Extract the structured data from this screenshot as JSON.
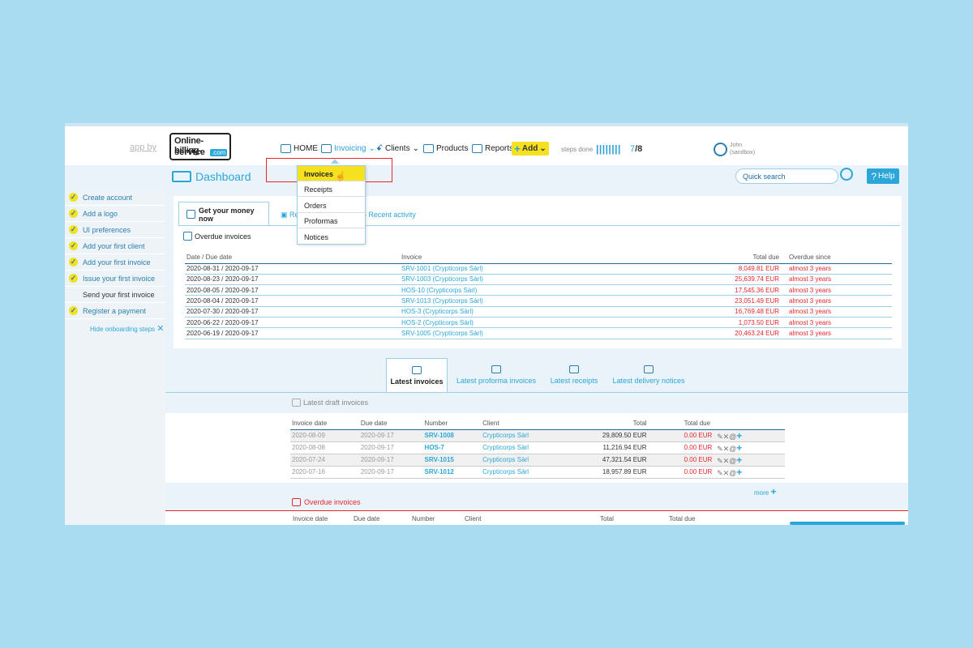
{
  "header": {
    "app_by": "app by",
    "logo_line1": "Online-billing-",
    "logo_line2": "service",
    "logo_suffix": ".com",
    "nav": {
      "home": "HOME",
      "invoicing": "Invoicing",
      "clients": "Clients",
      "products": "Products",
      "reports": "Reports",
      "add": "Add"
    },
    "steps_label": "steps done",
    "steps_bars": "||||||||",
    "steps_done": "7",
    "steps_total": "/8",
    "user_name": "John",
    "user_env": "(sandbox)"
  },
  "subheader": {
    "title": "Dashboard",
    "search_placeholder": "Quick search",
    "help_label": "Help"
  },
  "invoicing_menu": {
    "items": [
      "Invoices",
      "Receipts",
      "Orders",
      "Proformas",
      "Notices"
    ],
    "highlighted": "Invoices"
  },
  "sidebar": {
    "items": [
      {
        "label": "Create account",
        "done": true
      },
      {
        "label": "Add a logo",
        "done": true
      },
      {
        "label": "UI preferences",
        "done": true
      },
      {
        "label": "Add your first client",
        "done": true
      },
      {
        "label": "Add your first invoice",
        "done": true
      },
      {
        "label": "Issue your first invoice",
        "done": true
      },
      {
        "label": "Send your first invoice",
        "done": false
      },
      {
        "label": "Register a payment",
        "done": true
      }
    ],
    "hide_label": "Hide onboarding steps"
  },
  "top_tabs": {
    "tab1": "Get your money now",
    "tab2": "Re",
    "tab3": "Recent activity"
  },
  "overdue_card": {
    "title": "Overdue invoices",
    "columns": [
      "Date / Due date",
      "Invoice",
      "Total due",
      "Overdue since"
    ],
    "rows": [
      [
        "2020-08-31 / 2020-09-17",
        "SRV-1001 (Crypticorps Sàrl)",
        "8,049.81 EUR",
        "almost 3 years"
      ],
      [
        "2020-08-23 / 2020-09-17",
        "SRV-1003 (Crypticorps Sàrl)",
        "25,639.74 EUR",
        "almost 3 years"
      ],
      [
        "2020-08-05 / 2020-09-17",
        "HOS-10 (Crypticorps Sàrl)",
        "17,545.36 EUR",
        "almost 3 years"
      ],
      [
        "2020-08-04 / 2020-09-17",
        "SRV-1013 (Crypticorps Sàrl)",
        "23,051.49 EUR",
        "almost 3 years"
      ],
      [
        "2020-07-30 / 2020-09-17",
        "HOS-3 (Crypticorps Sàrl)",
        "16,769.48 EUR",
        "almost 3 years"
      ],
      [
        "2020-06-22 / 2020-09-17",
        "HOS-2 (Crypticorps Sàrl)",
        "1,073.50 EUR",
        "almost 3 years"
      ],
      [
        "2020-06-19 / 2020-09-17",
        "SRV-1005 (Crypticorps Sàrl)",
        "20,463.24 EUR",
        "almost 3 years"
      ]
    ]
  },
  "lower_tabs": [
    "Latest invoices",
    "Latest proforma invoices",
    "Latest receipts",
    "Latest delivery notices"
  ],
  "drafts": {
    "title": "Latest draft invoices",
    "columns": [
      "Invoice date",
      "Due date",
      "Number",
      "Client",
      "Total",
      "Total due"
    ],
    "rows": [
      [
        "2020-08-09",
        "2020-09-17",
        "SRV-1008",
        "Crypticorps Sàrl",
        "29,809.50 EUR",
        "0.00 EUR"
      ],
      [
        "2020-08-08",
        "2020-09-17",
        "HOS-7",
        "Crypticorps Sàrl",
        "11,216.94 EUR",
        "0.00 EUR"
      ],
      [
        "2020-07-24",
        "2020-09-17",
        "SRV-1015",
        "Crypticorps Sàrl",
        "47,321.54 EUR",
        "0.00 EUR"
      ],
      [
        "2020-07-16",
        "2020-09-17",
        "SRV-1012",
        "Crypticorps Sàrl",
        "18,957.89 EUR",
        "0.00 EUR"
      ]
    ],
    "more_label": "more"
  },
  "overdue_section": {
    "title": "Overdue invoices",
    "columns": [
      "Invoice date",
      "Due date",
      "Number",
      "Client",
      "Total",
      "Total due"
    ]
  },
  "colors": {
    "accent": "#2aa7d8",
    "highlight": "#f5e11f",
    "alert": "#e8262b",
    "background": "#a9dcf0"
  }
}
